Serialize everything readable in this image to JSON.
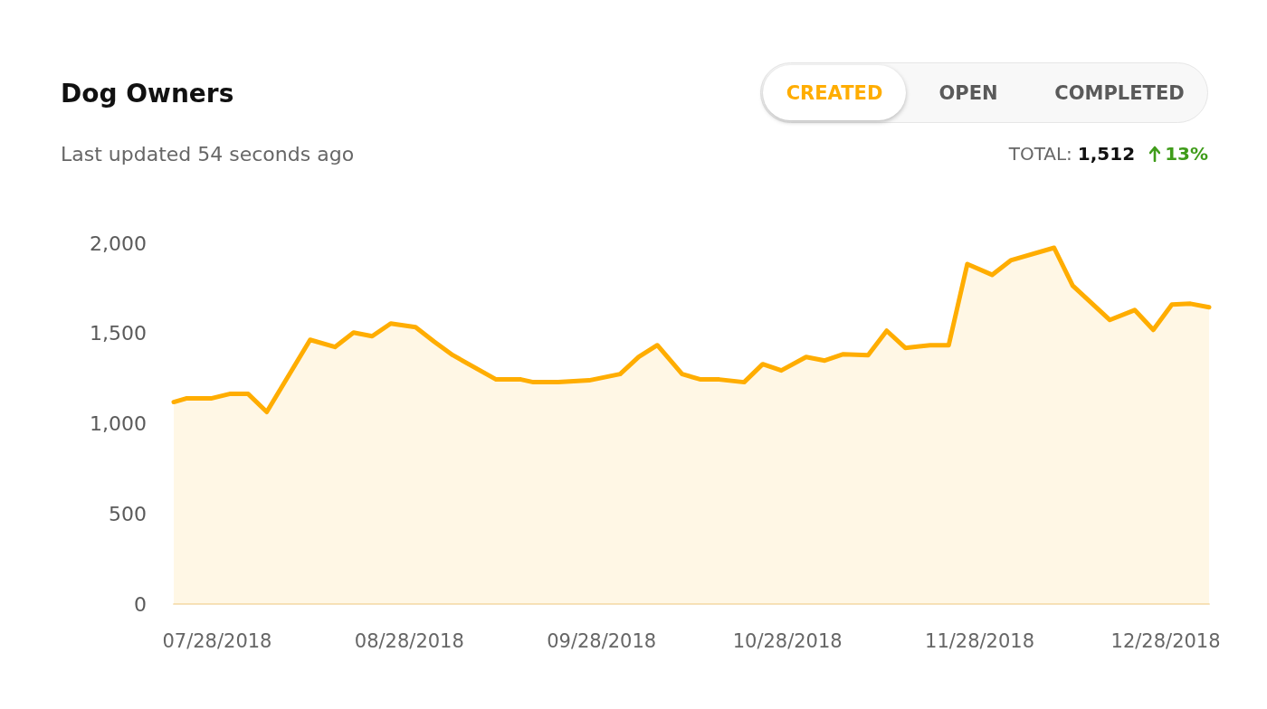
{
  "chart_data": {
    "type": "area",
    "title": "Dog Owners",
    "subtitle": "Last updated 54 seconds ago",
    "annotations": [
      "CREATED",
      "OPEN",
      "COMPLETED",
      "TOTAL:",
      "1,512",
      "13%"
    ],
    "x": [
      "2018-07-21",
      "2018-07-23",
      "2018-07-27",
      "2018-07-30",
      "2018-08-02",
      "2018-08-05",
      "2018-08-12",
      "2018-08-16",
      "2018-08-19",
      "2018-08-22",
      "2018-08-25",
      "2018-08-29",
      "2018-09-01",
      "2018-09-04",
      "2018-09-11",
      "2018-09-15",
      "2018-09-17",
      "2018-09-21",
      "2018-09-26",
      "2018-10-01",
      "2018-10-04",
      "2018-10-07",
      "2018-10-11",
      "2018-10-14",
      "2018-10-17",
      "2018-10-21",
      "2018-10-24",
      "2018-10-27",
      "2018-10-31",
      "2018-11-03",
      "2018-11-06",
      "2018-11-10",
      "2018-11-13",
      "2018-11-16",
      "2018-11-20",
      "2018-11-23",
      "2018-11-26",
      "2018-11-30",
      "2018-12-03",
      "2018-12-10",
      "2018-12-13",
      "2018-12-19",
      "2018-12-23",
      "2018-12-26",
      "2018-12-29",
      "2019-01-01",
      "2019-01-04"
    ],
    "values": [
      1120,
      1140,
      1140,
      1165,
      1165,
      1065,
      1465,
      1425,
      1505,
      1485,
      1555,
      1535,
      1455,
      1380,
      1245,
      1245,
      1230,
      1230,
      1240,
      1275,
      1370,
      1435,
      1275,
      1245,
      1245,
      1230,
      1330,
      1295,
      1370,
      1350,
      1385,
      1380,
      1515,
      1420,
      1435,
      1435,
      1885,
      1825,
      1905,
      1975,
      1765,
      1575,
      1630,
      1520,
      1660,
      1665,
      1645
    ],
    "color": "#ffad00",
    "xlim": [
      "2018-07-21",
      "2019-01-04"
    ],
    "xticks": [
      {
        "value": "2018-07-28",
        "label": "07/28/2018"
      },
      {
        "value": "2018-08-28",
        "label": "08/28/2018"
      },
      {
        "value": "2018-09-28",
        "label": "09/28/2018"
      },
      {
        "value": "2018-10-28",
        "label": "10/28/2018"
      },
      {
        "value": "2018-11-28",
        "label": "11/28/2018"
      },
      {
        "value": "2018-12-28",
        "label": "12/28/2018"
      }
    ],
    "ylim": [
      0,
      2000
    ],
    "yticks": [
      0,
      500,
      {
        "value": 1000,
        "label": "1,000"
      },
      {
        "value": 1500,
        "label": "1,500"
      },
      {
        "value": 2000,
        "label": "2,000"
      }
    ]
  }
}
